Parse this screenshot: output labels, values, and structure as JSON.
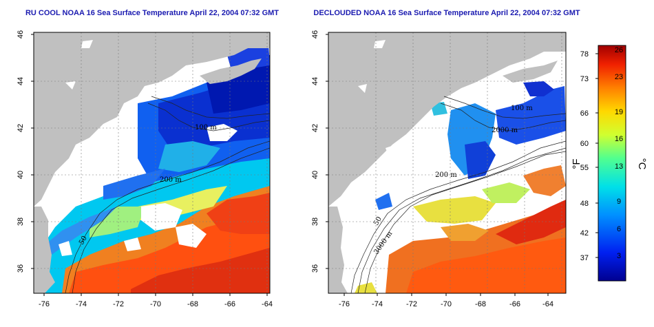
{
  "maps": [
    {
      "title": "RU COOL NOAA 16 Sea Surface Temperature April 22, 2004 07:32 GMT",
      "contour_labels": [
        "200 m",
        "100 m",
        "50"
      ]
    },
    {
      "title": "DECLOUDED NOAA 16 Sea Surface Temperature April 22, 2004 07:32 GMT",
      "contour_labels": [
        "100 m",
        "200 m",
        "50",
        "3000 m",
        "2000 m"
      ]
    }
  ],
  "axes": {
    "lat_ticks": [
      "46",
      "44",
      "42",
      "40",
      "38",
      "36"
    ],
    "lon_ticks": [
      "-76",
      "-74",
      "-72",
      "-70",
      "-68",
      "-66",
      "-64"
    ]
  },
  "colorbar": {
    "fahrenheit_label": "°F",
    "celsius_label": "°C",
    "fahrenheit_ticks": [
      "78",
      "73",
      "66",
      "60",
      "55",
      "48",
      "42",
      "37"
    ],
    "celsius_ticks": [
      "26",
      "23",
      "19",
      "16",
      "13",
      "9",
      "6",
      "3"
    ],
    "colors": [
      "#0000a0",
      "#0030ff",
      "#00a0ff",
      "#00e0e0",
      "#40ff90",
      "#c8ff30",
      "#ffe000",
      "#ff9000",
      "#ff3000",
      "#c00000"
    ]
  },
  "colors": {
    "land": "#c0c0c0",
    "title": "#1a1ab0"
  }
}
